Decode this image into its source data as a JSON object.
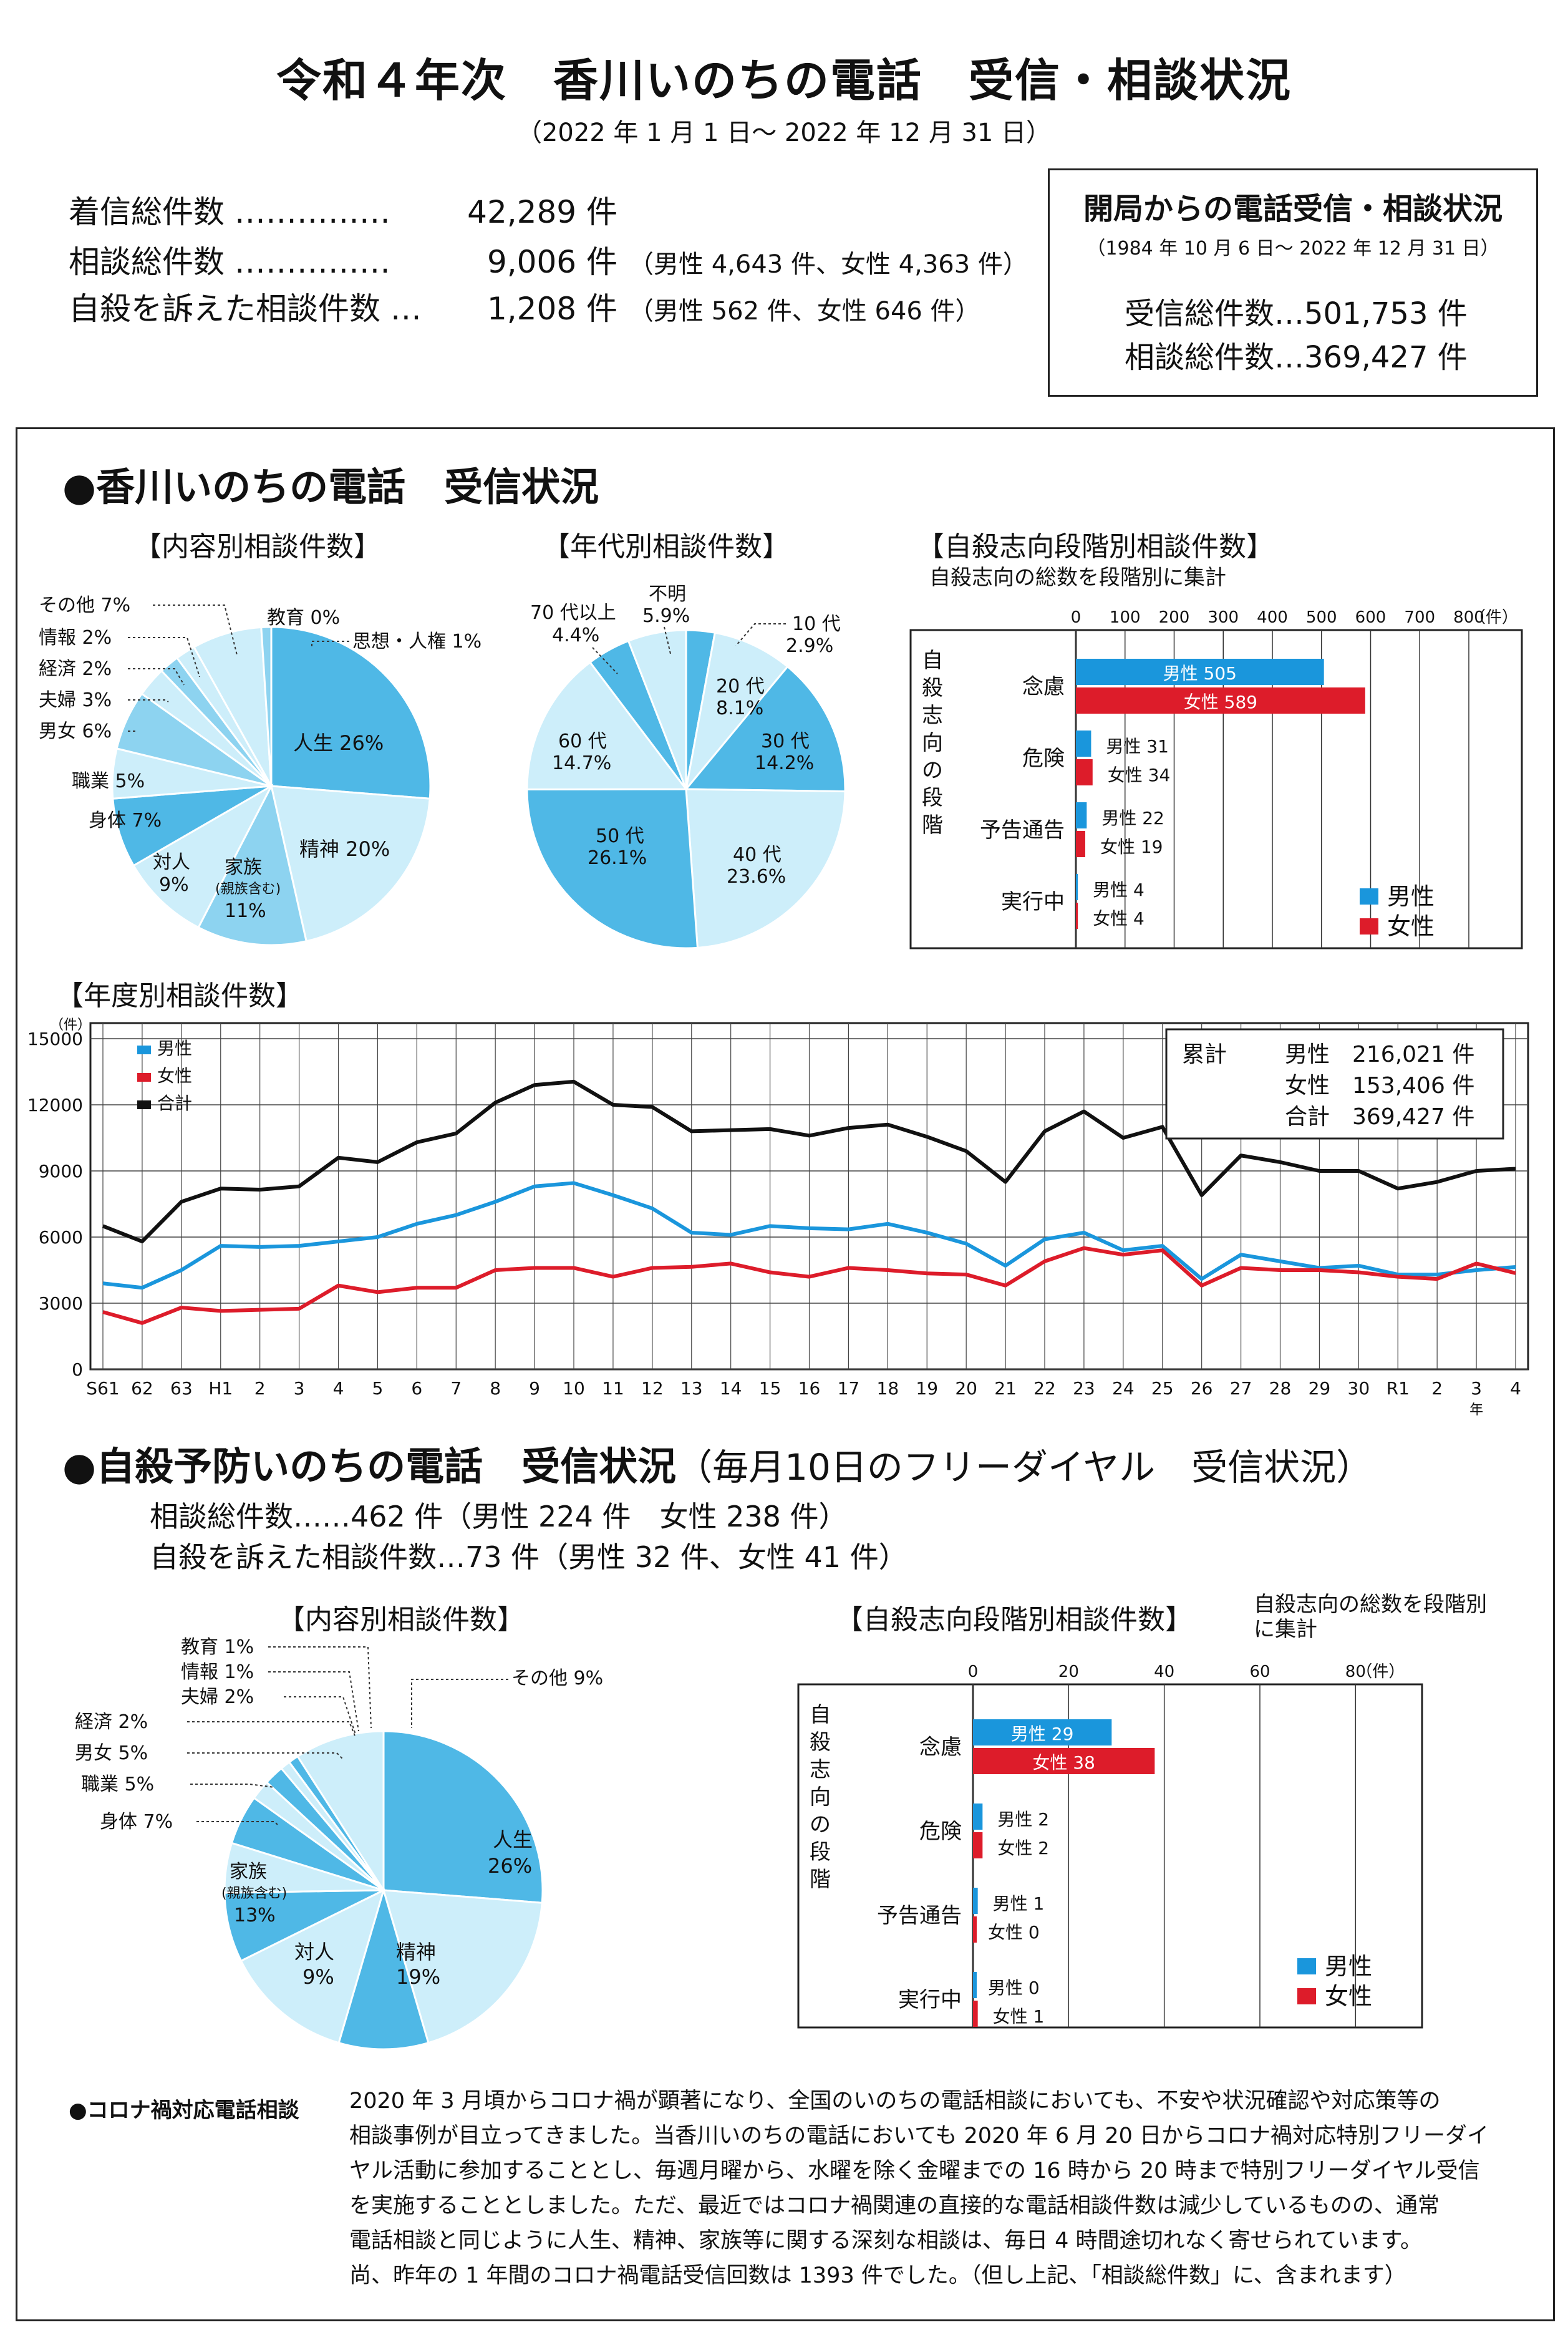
{
  "header": {
    "title": "令和４年次　香川いのちの電話　受信・相談状況",
    "period": "（2022 年 1 月 1 日～ 2022 年 12 月 31 日）"
  },
  "summary": [
    {
      "label": "着信総件数 ……………",
      "value": "42,289 件",
      "sub": ""
    },
    {
      "label": "相談総件数 ……………",
      "value": "9,006 件",
      "sub": "（男性 4,643 件、女性 4,363 件）"
    },
    {
      "label": "自殺を訴えた相談件数 …",
      "value": "1,208 件",
      "sub": "（男性 562 件、女性 646 件）"
    }
  ],
  "since_box": {
    "title": "開局からの電話受信・相談状況",
    "period": "（1984 年 10 月 6 日～ 2022 年 12 月 31 日）",
    "received": "受信総件数…501,753 件",
    "consult": "相談総件数…369,427 件"
  },
  "section1": {
    "title": "●香川いのちの電話　受信状況"
  },
  "section2": {
    "title": "●自殺予防いのちの電話　受信状況",
    "subtitle": "（毎月10日のフリーダイヤル　受信状況）",
    "line1": "相談総件数……462 件（男性 224 件　女性 238 件）",
    "line2": "自殺を訴えた相談件数…73 件（男性 32 件、女性 41 件）"
  },
  "colors": {
    "male": "#1a96dc",
    "female": "#dd1c2a",
    "total": "#111111",
    "pie_dark": "#4fb8e6",
    "pie_mid": "#8dd3f0",
    "pie_light": "#cdeefa"
  },
  "chart_data": [
    {
      "type": "pie",
      "title": "【内容別相談件数】",
      "labels": [
        "人生 26%",
        "精神 20%",
        "家族（親族含む）11%",
        "対人 9%",
        "身体 7%",
        "職業 5%",
        "男女 6%",
        "夫婦 3%",
        "経済 2%",
        "情報 2%",
        "その他 7%",
        "教育 0%",
        "思想・人権 1%"
      ],
      "values": [
        26,
        20,
        11,
        9,
        7,
        5,
        6,
        3,
        2,
        2,
        7,
        0,
        1
      ]
    },
    {
      "type": "pie",
      "title": "【年代別相談件数】",
      "labels": [
        "10 代 2.9%",
        "20 代 8.1%",
        "30 代 14.2%",
        "40 代 23.6%",
        "50 代 26.1%",
        "60 代 14.7%",
        "70 代以上 4.4%",
        "不明 5.9%"
      ],
      "values": [
        2.9,
        8.1,
        14.2,
        23.6,
        26.1,
        14.7,
        4.4,
        5.9
      ]
    },
    {
      "type": "bar",
      "title": "【自殺志向段階別相談件数】",
      "subtitle": "自殺志向の総数を段階別に集計",
      "ylabel": "自殺志向の段階",
      "unit": "（件）",
      "categories": [
        "念慮",
        "危険",
        "予告通告",
        "実行中"
      ],
      "series": [
        {
          "name": "男性",
          "values": [
            505,
            31,
            22,
            4
          ]
        },
        {
          "name": "女性",
          "values": [
            589,
            34,
            19,
            4
          ]
        }
      ],
      "xlim": [
        0,
        800
      ],
      "ticks": [
        0,
        100,
        200,
        300,
        400,
        500,
        600,
        700,
        800
      ],
      "legend": "bottom-right"
    },
    {
      "type": "line",
      "title": "【年度別相談件数】",
      "unit": "（件）",
      "x": [
        "S61",
        "62",
        "63",
        "H1",
        "2",
        "3",
        "4",
        "5",
        "6",
        "7",
        "8",
        "9",
        "10",
        "11",
        "12",
        "13",
        "14",
        "15",
        "16",
        "17",
        "18",
        "19",
        "20",
        "21",
        "22",
        "23",
        "24",
        "25",
        "26",
        "27",
        "28",
        "29",
        "30",
        "R1",
        "2",
        "3",
        "4"
      ],
      "year_suffix": "年",
      "series": [
        {
          "name": "男性",
          "values": [
            3900,
            3700,
            4500,
            5600,
            5550,
            5600,
            5800,
            6000,
            6600,
            7000,
            7600,
            8300,
            8450,
            7900,
            7300,
            6200,
            6100,
            6500,
            6400,
            6350,
            6600,
            6200,
            5700,
            4700,
            5900,
            6200,
            5400,
            5600,
            4100,
            5200,
            4900,
            4600,
            4700,
            4300,
            4300,
            4500,
            4643
          ]
        },
        {
          "name": "女性",
          "values": [
            2600,
            2100,
            2800,
            2650,
            2700,
            2750,
            3800,
            3500,
            3700,
            3700,
            4500,
            4600,
            4600,
            4200,
            4600,
            4650,
            4800,
            4400,
            4200,
            4600,
            4500,
            4350,
            4300,
            3800,
            4900,
            5500,
            5200,
            5400,
            3800,
            4600,
            4500,
            4500,
            4400,
            4200,
            4100,
            4800,
            4363
          ]
        },
        {
          "name": "合計",
          "values": [
            6500,
            5800,
            7600,
            8200,
            8150,
            8300,
            9600,
            9400,
            10300,
            10700,
            12100,
            12900,
            13050,
            12000,
            11900,
            10800,
            10850,
            10900,
            10600,
            10950,
            11100,
            10550,
            9900,
            8500,
            10800,
            11700,
            10500,
            11000,
            7900,
            9700,
            9400,
            9000,
            9000,
            8200,
            8500,
            9000,
            9100
          ]
        }
      ],
      "ylim": [
        0,
        15000
      ],
      "yticks": [
        0,
        3000,
        6000,
        9000,
        12000,
        15000
      ],
      "legend": "top-left",
      "totals": {
        "label": "累計",
        "male": "男性　216,021 件",
        "female": "女性　153,406 件",
        "total": "合計　369,427 件"
      }
    },
    {
      "type": "pie",
      "title": "【内容別相談件数】",
      "labels": [
        "人生 26%",
        "精神 19%",
        "対人 9%",
        "家族（親族含む）13%",
        "身体 7%",
        "職業 5%",
        "男女 5%",
        "経済 2%",
        "夫婦 2%",
        "情報 1%",
        "教育 1%",
        "その他 9%"
      ],
      "values": [
        26,
        19,
        9,
        13,
        7,
        5,
        5,
        2,
        2,
        1,
        1,
        9
      ]
    },
    {
      "type": "bar",
      "title": "【自殺志向段階別相談件数】",
      "subtitle": "自殺志向の総数を段階別に集計",
      "ylabel": "自殺志向の段階",
      "unit": "（件）",
      "categories": [
        "念慮",
        "危険",
        "予告通告",
        "実行中"
      ],
      "series": [
        {
          "name": "男性",
          "values": [
            29,
            2,
            1,
            0
          ]
        },
        {
          "name": "女性",
          "values": [
            38,
            2,
            0,
            1
          ]
        }
      ],
      "xlim": [
        0,
        90
      ],
      "ticks": [
        0,
        20,
        40,
        60,
        80
      ],
      "legend": "bottom-right"
    }
  ],
  "note": {
    "label": "●コロナ禍対応電話相談",
    "lines": [
      "2020 年 3 月頃からコロナ禍が顕著になり、全国のいのちの電話相談においても、不安や状況確認や対応策等の",
      "相談事例が目立ってきました。当香川いのちの電話においても 2020 年 6 月 20 日からコロナ禍対応特別フリーダイ",
      "ヤル活動に参加することとし、毎週月曜から、水曜を除く金曜までの 16 時から 20 時まで特別フリーダイヤル受信",
      "を実施することとしました。ただ、最近ではコロナ禍関連の直接的な電話相談件数は減少しているものの、通常",
      "電話相談と同じように人生、精神、家族等に関する深刻な相談は、毎日 4 時間途切れなく寄せられています。",
      "尚、昨年の 1 年間のコロナ禍電話受信回数は 1393 件でした。（但し上記、「相談総件数」に、含まれます）"
    ]
  }
}
